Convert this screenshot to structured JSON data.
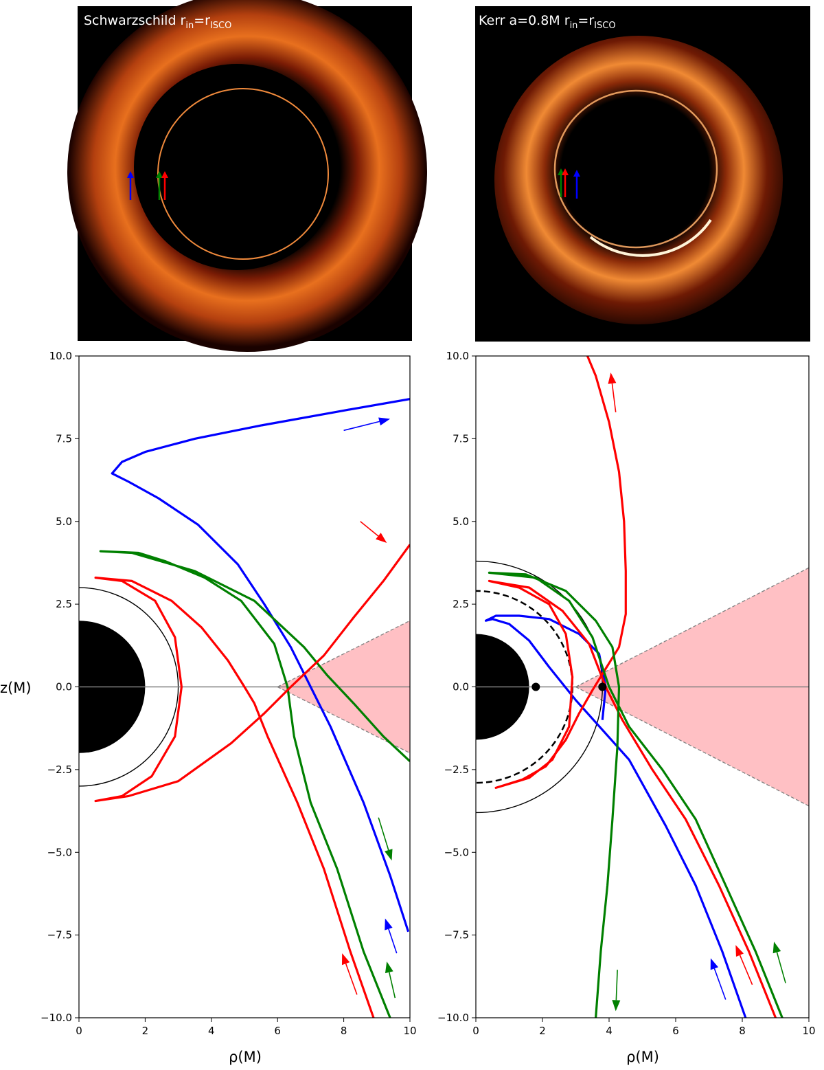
{
  "colors": {
    "ray_blue": "#0000ff",
    "ray_green": "#008000",
    "ray_red": "#ff0000",
    "disk_fill": "#ffc0c4",
    "disk_edge": "#808080",
    "hole": "#000000"
  },
  "chart_data": [
    {
      "type": "image",
      "title": "Schwarzschild r_in=r_ISCO",
      "title_parts": {
        "main": "Schwarzschild r",
        "sub1": "in",
        "mid": "=r",
        "sub2": "ISCO"
      },
      "content": "simulated accretion disk image (black shadow, thin photon ring, orange glow)",
      "marker_arrows": [
        {
          "color": "blue"
        },
        {
          "color": "green"
        },
        {
          "color": "red"
        }
      ]
    },
    {
      "type": "image",
      "title": "Kerr a=0.8M r_in=r_ISCO",
      "title_parts": {
        "main": "Kerr a=0.8M r",
        "sub1": "in",
        "mid": "=r",
        "sub2": "ISCO"
      },
      "content": "simulated accretion disk image of spinning black hole (shifted shadow, bright lower-right crescent)",
      "marker_arrows": [
        {
          "color": "green"
        },
        {
          "color": "red"
        },
        {
          "color": "blue"
        }
      ]
    },
    {
      "type": "line",
      "panel": "Schwarzschild",
      "xlabel": "ρ(M)",
      "ylabel": "z(M)",
      "xlim": [
        0,
        10
      ],
      "ylim": [
        -10,
        10
      ],
      "xticks": [
        "0",
        "2",
        "4",
        "6",
        "8",
        "10"
      ],
      "yticks": [
        "−10.0",
        "−7.5",
        "−5.0",
        "−2.5",
        "0.0",
        "2.5",
        "5.0",
        "7.5",
        "10.0"
      ],
      "horizon_radius": 2,
      "photon_circle_radius": 3,
      "disk_cone": {
        "apex_rho": 6,
        "z_at_rho10": [
          2.0,
          -2.0
        ]
      },
      "series": [
        {
          "color": "blue",
          "points": [
            [
              9.95,
              -7.4
            ],
            [
              9.4,
              -5.7
            ],
            [
              8.6,
              -3.5
            ],
            [
              7.6,
              -1.2
            ],
            [
              7,
              0
            ],
            [
              6.4,
              1.2
            ],
            [
              5.6,
              2.5
            ],
            [
              4.8,
              3.7
            ],
            [
              3.6,
              4.9
            ],
            [
              2.4,
              5.7
            ],
            [
              1.5,
              6.2
            ],
            [
              1.0,
              6.45
            ],
            [
              1.3,
              6.8
            ],
            [
              2.0,
              7.1
            ],
            [
              3.5,
              7.5
            ],
            [
              5.5,
              7.9
            ],
            [
              8.0,
              8.35
            ],
            [
              10.0,
              8.7
            ]
          ]
        },
        {
          "color": "green",
          "points": [
            [
              9.4,
              -10
            ],
            [
              8.6,
              -8
            ],
            [
              7.8,
              -5.5
            ],
            [
              7.0,
              -3.5
            ],
            [
              6.5,
              -1.5
            ],
            [
              6.3,
              0
            ],
            [
              5.9,
              1.3
            ],
            [
              4.9,
              2.6
            ],
            [
              3.8,
              3.3
            ],
            [
              2.6,
              3.8
            ],
            [
              1.8,
              4.05
            ],
            [
              0.65,
              4.1
            ],
            [
              1.6,
              4.05
            ],
            [
              3.5,
              3.5
            ],
            [
              5.3,
              2.6
            ],
            [
              6.8,
              1.2
            ],
            [
              7.5,
              0.35
            ],
            [
              8.3,
              -0.5
            ],
            [
              9.2,
              -1.5
            ],
            [
              10.0,
              -2.25
            ]
          ]
        },
        {
          "color": "red",
          "points": [
            [
              8.9,
              -10
            ],
            [
              8.2,
              -8
            ],
            [
              7.4,
              -5.5
            ],
            [
              6.6,
              -3.5
            ],
            [
              5.7,
              -1.5
            ],
            [
              5.3,
              -0.5
            ],
            [
              5.0,
              0
            ],
            [
              4.5,
              0.8
            ],
            [
              3.7,
              1.8
            ],
            [
              2.8,
              2.6
            ],
            [
              1.6,
              3.2
            ],
            [
              0.5,
              3.3
            ],
            [
              1.3,
              3.2
            ],
            [
              2.3,
              2.6
            ],
            [
              2.9,
              1.5
            ],
            [
              3.1,
              0
            ],
            [
              2.9,
              -1.5
            ],
            [
              2.2,
              -2.7
            ],
            [
              1.3,
              -3.3
            ],
            [
              0.5,
              -3.45
            ],
            [
              1.5,
              -3.3
            ],
            [
              3.0,
              -2.85
            ],
            [
              4.6,
              -1.7
            ],
            [
              5.6,
              -0.8
            ],
            [
              6.4,
              0
            ],
            [
              7.4,
              0.95
            ],
            [
              8.3,
              2.1
            ],
            [
              9.2,
              3.2
            ],
            [
              10.0,
              4.3
            ]
          ]
        }
      ],
      "direction_arrows": [
        {
          "color": "blue",
          "from": [
            8.0,
            7.75
          ],
          "to": [
            9.4,
            8.1
          ]
        },
        {
          "color": "red",
          "from": [
            8.5,
            5.0
          ],
          "to": [
            9.3,
            4.35
          ]
        },
        {
          "color": "green",
          "from": [
            9.05,
            -3.95
          ],
          "to": [
            9.45,
            -5.25
          ]
        },
        {
          "color": "blue",
          "from": [
            9.6,
            -8.05
          ],
          "to": [
            9.25,
            -7.0
          ]
        },
        {
          "color": "red",
          "from": [
            8.4,
            -9.3
          ],
          "to": [
            7.95,
            -8.05
          ]
        },
        {
          "color": "green",
          "from": [
            9.55,
            -9.4
          ],
          "to": [
            9.3,
            -8.3
          ]
        }
      ]
    },
    {
      "type": "line",
      "panel": "Kerr a=0.8M",
      "xlabel": "ρ(M)",
      "ylabel": "",
      "xlim": [
        0,
        10
      ],
      "ylim": [
        -10,
        10
      ],
      "xticks": [
        "0",
        "2",
        "4",
        "6",
        "8",
        "10"
      ],
      "yticks": [
        "−10.0",
        "−7.5",
        "−5.0",
        "−2.5",
        "0.0",
        "2.5",
        "5.0",
        "7.5",
        "10.0"
      ],
      "horizon_radius": 1.6,
      "outer_circle_radius": 3.8,
      "dashed_circle_radius": 2.9,
      "markers": [
        [
          1.8,
          0
        ],
        [
          3.8,
          0
        ]
      ],
      "disk_cone": {
        "apex_rho": 3.0,
        "z_at_rho10": [
          3.6,
          -3.6
        ]
      },
      "series": [
        {
          "color": "blue",
          "points": [
            [
              8.1,
              -10
            ],
            [
              7.4,
              -8
            ],
            [
              6.6,
              -6
            ],
            [
              5.7,
              -4.2
            ],
            [
              4.6,
              -2.2
            ],
            [
              3.8,
              -1.3
            ],
            [
              3.0,
              -0.4
            ],
            [
              2.2,
              0.6
            ],
            [
              1.6,
              1.4
            ],
            [
              1.0,
              1.9
            ],
            [
              0.5,
              2.05
            ],
            [
              0.3,
              2.0
            ],
            [
              0.6,
              2.15
            ],
            [
              1.3,
              2.15
            ],
            [
              2.2,
              2.05
            ],
            [
              3.1,
              1.6
            ],
            [
              3.7,
              1.0
            ],
            [
              3.9,
              0
            ],
            [
              3.8,
              -1.0
            ]
          ]
        },
        {
          "color": "red",
          "points": [
            [
              9.0,
              -10
            ],
            [
              8.2,
              -8
            ],
            [
              7.3,
              -6
            ],
            [
              6.3,
              -4
            ],
            [
              5.3,
              -2.5
            ],
            [
              4.4,
              -1.0
            ],
            [
              3.9,
              0
            ],
            [
              3.4,
              1.3
            ],
            [
              2.6,
              2.3
            ],
            [
              1.6,
              3.0
            ],
            [
              0.4,
              3.2
            ],
            [
              1.3,
              3.0
            ],
            [
              2.2,
              2.5
            ],
            [
              2.7,
              1.6
            ],
            [
              2.9,
              0.3
            ],
            [
              2.8,
              -1.2
            ],
            [
              2.3,
              -2.2
            ],
            [
              1.6,
              -2.75
            ],
            [
              0.6,
              -3.05
            ],
            [
              1.4,
              -2.8
            ],
            [
              2.1,
              -2.4
            ],
            [
              2.7,
              -1.6
            ],
            [
              3.1,
              -0.8
            ],
            [
              3.5,
              -0.1
            ],
            [
              3.9,
              0.55
            ],
            [
              4.3,
              1.2
            ],
            [
              4.5,
              2.2
            ],
            [
              4.5,
              3.5
            ],
            [
              4.45,
              5.0
            ],
            [
              4.3,
              6.5
            ],
            [
              4.0,
              8.0
            ],
            [
              3.6,
              9.4
            ],
            [
              3.35,
              10
            ]
          ]
        },
        {
          "color": "green",
          "points": [
            [
              9.2,
              -10
            ],
            [
              8.4,
              -8
            ],
            [
              7.5,
              -6
            ],
            [
              6.6,
              -4
            ],
            [
              5.6,
              -2.5
            ],
            [
              4.6,
              -1.2
            ],
            [
              4.0,
              0
            ],
            [
              3.5,
              1.5
            ],
            [
              2.8,
              2.6
            ],
            [
              1.8,
              3.3
            ],
            [
              0.4,
              3.45
            ],
            [
              1.5,
              3.4
            ],
            [
              2.7,
              2.9
            ],
            [
              3.6,
              2.0
            ],
            [
              4.1,
              1.2
            ],
            [
              4.3,
              0
            ],
            [
              4.25,
              -1.8
            ],
            [
              4.1,
              -4.0
            ],
            [
              3.95,
              -6.0
            ],
            [
              3.75,
              -8.0
            ],
            [
              3.6,
              -10
            ]
          ]
        }
      ],
      "direction_arrows": [
        {
          "color": "red",
          "from": [
            4.2,
            8.3
          ],
          "to": [
            4.05,
            9.5
          ]
        },
        {
          "color": "green",
          "from": [
            4.25,
            -8.55
          ],
          "to": [
            4.2,
            -9.8
          ]
        },
        {
          "color": "blue",
          "from": [
            7.5,
            -9.45
          ],
          "to": [
            7.05,
            -8.2
          ]
        },
        {
          "color": "red",
          "from": [
            8.3,
            -9.0
          ],
          "to": [
            7.8,
            -7.8
          ]
        },
        {
          "color": "green",
          "from": [
            9.3,
            -8.95
          ],
          "to": [
            8.95,
            -7.7
          ]
        }
      ]
    }
  ]
}
